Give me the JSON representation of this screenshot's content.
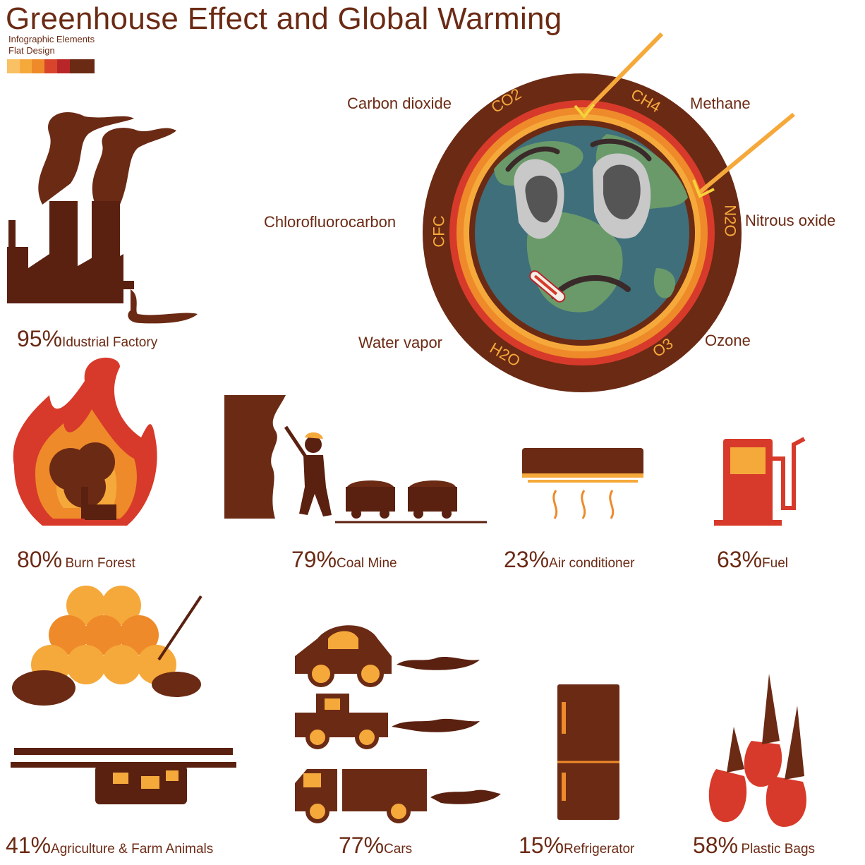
{
  "title": "Greenhouse Effect and Global Warming",
  "subtitle_1": "Infographic Elements",
  "subtitle_2": "Flat Design",
  "palette": [
    "#f9c064",
    "#f6a93b",
    "#ee8a2a",
    "#d9452c",
    "#b8262a",
    "#6b2a14"
  ],
  "colors": {
    "brown": "#6b2a14",
    "dark_brown": "#5a2010",
    "orange": "#ee8a2a",
    "light_orange": "#f6a93b",
    "red": "#d73a2a",
    "globe_ocean": "#3f6f7a",
    "globe_land": "#6a9a6a"
  },
  "gases": {
    "co2": {
      "symbol": "CO2",
      "name": "Carbon dioxide"
    },
    "ch4": {
      "symbol": "CH4",
      "name": "Methane"
    },
    "cfc": {
      "symbol": "CFC",
      "name": "Chlorofluorocarbon"
    },
    "n2o": {
      "symbol": "N2O",
      "name": "Nitrous oxide"
    },
    "h2o": {
      "symbol": "H2O",
      "name": "Water vapor"
    },
    "o3": {
      "symbol": "O3",
      "name": "Ozone"
    }
  },
  "sources": [
    {
      "id": "factory",
      "percent": "95%",
      "label": "Idustrial Factory",
      "icon": "factory-icon"
    },
    {
      "id": "forest",
      "percent": "80%",
      "label": "Burn Forest",
      "icon": "burning-forest-icon"
    },
    {
      "id": "coal",
      "percent": "79%",
      "label": "Coal Mine",
      "icon": "coal-mine-icon"
    },
    {
      "id": "ac",
      "percent": "23%",
      "label": "Air conditioner",
      "icon": "air-conditioner-icon"
    },
    {
      "id": "fuel",
      "percent": "63%",
      "label": "Fuel",
      "icon": "fuel-pump-icon"
    },
    {
      "id": "agri",
      "percent": "41%",
      "label": "Agriculture & Farm Animals",
      "icon": "farm-icon"
    },
    {
      "id": "cars",
      "percent": "77%",
      "label": "Cars",
      "icon": "cars-icon"
    },
    {
      "id": "fridge",
      "percent": "15%",
      "label": "Refrigerator",
      "icon": "refrigerator-icon"
    },
    {
      "id": "bags",
      "percent": "58%",
      "label": "Plastic Bags",
      "icon": "plastic-bags-icon"
    }
  ]
}
